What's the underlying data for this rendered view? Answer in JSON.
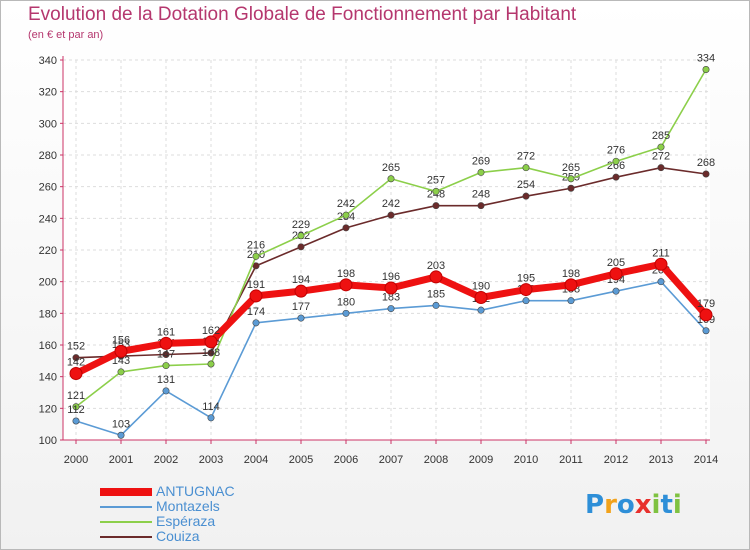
{
  "chart_data": {
    "type": "line",
    "title": "Evolution de la Dotation Globale de Fonctionnement par Habitant",
    "subtitle": "(en € et par an)",
    "categories": [
      "2000",
      "2001",
      "2002",
      "2003",
      "2004",
      "2005",
      "2006",
      "2007",
      "2008",
      "2009",
      "2010",
      "2011",
      "2012",
      "2013",
      "2014"
    ],
    "ylim": [
      100,
      340
    ],
    "yticks": [
      100,
      120,
      140,
      160,
      180,
      200,
      220,
      240,
      260,
      280,
      300,
      320,
      340
    ],
    "grid": true,
    "legend_position": "bottom-left",
    "series": [
      {
        "name": "Couiza",
        "color": "#6b2b2b",
        "values": [
          152,
          153,
          154,
          155,
          210,
          222,
          234,
          242,
          248,
          248,
          254,
          259,
          266,
          272,
          268
        ],
        "labels": [
          "152",
          "153",
          "154",
          "155",
          "210",
          "222",
          "234",
          "242",
          "248",
          "248",
          "254",
          "259",
          "266",
          "272",
          "268"
        ]
      },
      {
        "name": "Espéraza",
        "color": "#8ccf4a",
        "values": [
          121,
          143,
          147,
          148,
          216,
          229,
          242,
          265,
          257,
          269,
          272,
          265,
          276,
          285,
          334
        ],
        "labels": [
          "121",
          "143",
          "147",
          "148",
          "216",
          "229",
          "242",
          "265",
          "257",
          "269",
          "272",
          "265",
          "276",
          "285",
          "334"
        ]
      },
      {
        "name": "Montazels",
        "color": "#5b9bd5",
        "values": [
          112,
          103,
          131,
          114,
          174,
          177,
          180,
          183,
          185,
          182,
          188,
          188,
          194,
          200,
          169
        ],
        "labels": [
          "112",
          "103",
          "131",
          "114",
          "174",
          "177",
          "180",
          "183",
          "185",
          "182",
          "188",
          "188",
          "194",
          "200",
          "169"
        ]
      },
      {
        "name": "ANTUGNAC",
        "color": "#ee1111",
        "values": [
          142,
          156,
          161,
          162,
          191,
          194,
          198,
          196,
          203,
          190,
          195,
          198,
          205,
          211,
          179
        ],
        "labels": [
          "142",
          "156",
          "161",
          "162",
          "191",
          "194",
          "198",
          "196",
          "203",
          "190",
          "195",
          "198",
          "205",
          "211",
          "179"
        ]
      }
    ],
    "legend": [
      "ANTUGNAC",
      "Montazels",
      "Espéraza",
      "Couiza"
    ]
  },
  "legend_colors": {
    "ANTUGNAC": "#ee1111",
    "Montazels": "#5b9bd5",
    "Espéraza": "#8ccf4a",
    "Couiza": "#6b2b2b"
  },
  "legend_text_color": "#4a8fd1",
  "logo": {
    "letters": [
      "P",
      "r",
      "o",
      "x",
      "i",
      "t",
      "i"
    ],
    "colors": [
      "#2e8fd8",
      "#f2a21a",
      "#2e8fd8",
      "#e8302d",
      "#7fc241",
      "#2e8fd8",
      "#7fc241"
    ]
  }
}
